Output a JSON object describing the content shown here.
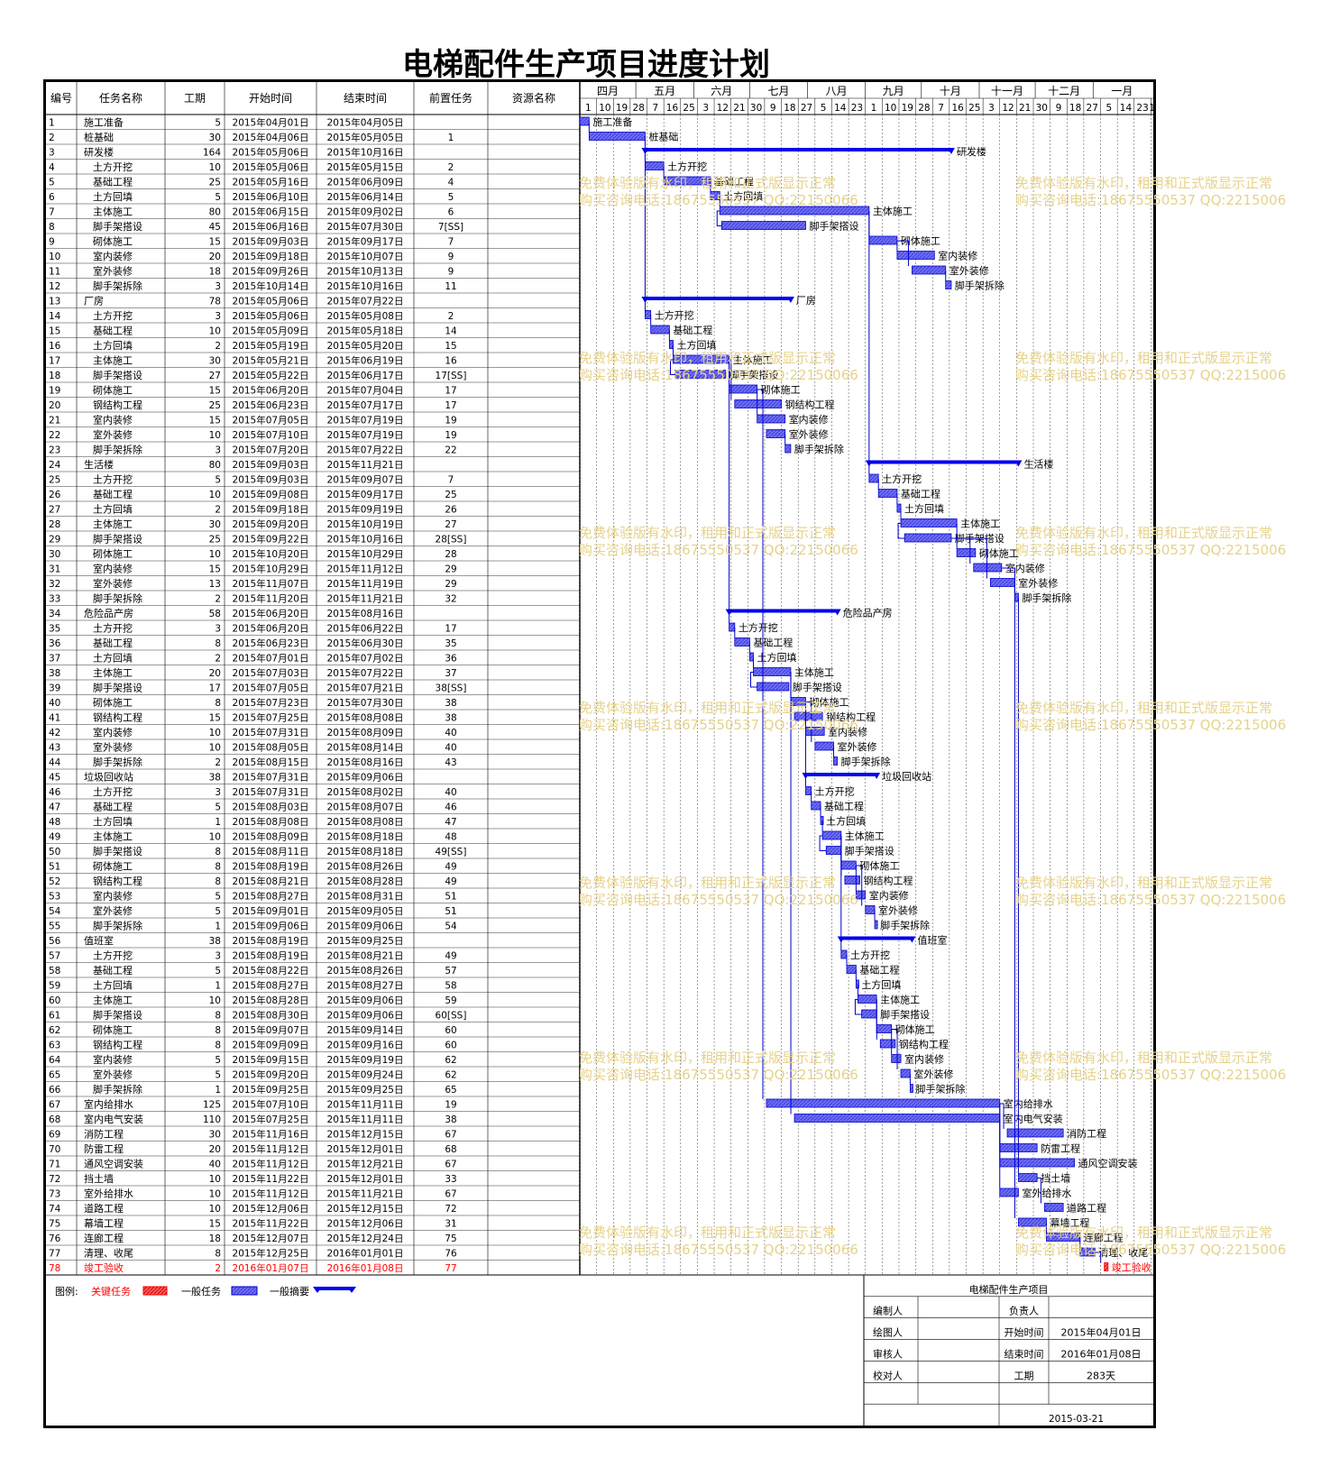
{
  "title": "电梯配件生产项目进度计划",
  "chart_data": {
    "type": "gantt",
    "columns": [
      "编号",
      "任务名称",
      "工期",
      "开始时间",
      "结束时间",
      "前置任务",
      "资源名称"
    ],
    "months": [
      "四月",
      "五月",
      "六月",
      "七月",
      "八月",
      "九月",
      "十月",
      "十一月",
      "十二月",
      "一月"
    ],
    "week_ticks": [
      "1",
      "10",
      "19",
      "28",
      "7",
      "16",
      "25",
      "3",
      "12",
      "21",
      "30",
      "9",
      "18",
      "27",
      "5",
      "14",
      "23",
      "1",
      "10",
      "19",
      "28",
      "7",
      "16",
      "25",
      "3",
      "12",
      "21",
      "30",
      "9",
      "18",
      "27",
      "5",
      "14",
      "23",
      "1"
    ],
    "tasks": [
      {
        "id": "1",
        "name": "施工准备",
        "level": 0,
        "dur": "5",
        "start": "2015年04月01日",
        "end": "2015年04月05日",
        "pred": ""
      },
      {
        "id": "2",
        "name": "桩基础",
        "level": 0,
        "dur": "30",
        "start": "2015年04月06日",
        "end": "2015年05月05日",
        "pred": "1"
      },
      {
        "id": "3",
        "name": "研发楼",
        "level": 0,
        "dur": "164",
        "start": "2015年05月06日",
        "end": "2015年10月16日",
        "pred": "",
        "summary": true
      },
      {
        "id": "4",
        "name": "土方开挖",
        "level": 1,
        "dur": "10",
        "start": "2015年05月06日",
        "end": "2015年05月15日",
        "pred": "2"
      },
      {
        "id": "5",
        "name": "基础工程",
        "level": 1,
        "dur": "25",
        "start": "2015年05月16日",
        "end": "2015年06月09日",
        "pred": "4"
      },
      {
        "id": "6",
        "name": "土方回填",
        "level": 1,
        "dur": "5",
        "start": "2015年06月10日",
        "end": "2015年06月14日",
        "pred": "5"
      },
      {
        "id": "7",
        "name": "主体施工",
        "level": 1,
        "dur": "80",
        "start": "2015年06月15日",
        "end": "2015年09月02日",
        "pred": "6"
      },
      {
        "id": "8",
        "name": "脚手架搭设",
        "level": 1,
        "dur": "45",
        "start": "2015年06月16日",
        "end": "2015年07月30日",
        "pred": "7[SS]"
      },
      {
        "id": "9",
        "name": "砌体施工",
        "level": 1,
        "dur": "15",
        "start": "2015年09月03日",
        "end": "2015年09月17日",
        "pred": "7"
      },
      {
        "id": "10",
        "name": "室内装修",
        "level": 1,
        "dur": "20",
        "start": "2015年09月18日",
        "end": "2015年10月07日",
        "pred": "9"
      },
      {
        "id": "11",
        "name": "室外装修",
        "level": 1,
        "dur": "18",
        "start": "2015年09月26日",
        "end": "2015年10月13日",
        "pred": "9"
      },
      {
        "id": "12",
        "name": "脚手架拆除",
        "level": 1,
        "dur": "3",
        "start": "2015年10月14日",
        "end": "2015年10月16日",
        "pred": "11"
      },
      {
        "id": "13",
        "name": "厂房",
        "level": 0,
        "dur": "78",
        "start": "2015年05月06日",
        "end": "2015年07月22日",
        "pred": "",
        "summary": true
      },
      {
        "id": "14",
        "name": "土方开挖",
        "level": 1,
        "dur": "3",
        "start": "2015年05月06日",
        "end": "2015年05月08日",
        "pred": "2"
      },
      {
        "id": "15",
        "name": "基础工程",
        "level": 1,
        "dur": "10",
        "start": "2015年05月09日",
        "end": "2015年05月18日",
        "pred": "14"
      },
      {
        "id": "16",
        "name": "土方回填",
        "level": 1,
        "dur": "2",
        "start": "2015年05月19日",
        "end": "2015年05月20日",
        "pred": "15"
      },
      {
        "id": "17",
        "name": "主体施工",
        "level": 1,
        "dur": "30",
        "start": "2015年05月21日",
        "end": "2015年06月19日",
        "pred": "16"
      },
      {
        "id": "18",
        "name": "脚手架搭设",
        "level": 1,
        "dur": "27",
        "start": "2015年05月22日",
        "end": "2015年06月17日",
        "pred": "17[SS]"
      },
      {
        "id": "19",
        "name": "砌体施工",
        "level": 1,
        "dur": "15",
        "start": "2015年06月20日",
        "end": "2015年07月04日",
        "pred": "17"
      },
      {
        "id": "20",
        "name": "钢结构工程",
        "level": 1,
        "dur": "25",
        "start": "2015年06月23日",
        "end": "2015年07月17日",
        "pred": "17"
      },
      {
        "id": "21",
        "name": "室内装修",
        "level": 1,
        "dur": "15",
        "start": "2015年07月05日",
        "end": "2015年07月19日",
        "pred": "19"
      },
      {
        "id": "22",
        "name": "室外装修",
        "level": 1,
        "dur": "10",
        "start": "2015年07月10日",
        "end": "2015年07月19日",
        "pred": "19"
      },
      {
        "id": "23",
        "name": "脚手架拆除",
        "level": 1,
        "dur": "3",
        "start": "2015年07月20日",
        "end": "2015年07月22日",
        "pred": "22"
      },
      {
        "id": "24",
        "name": "生活楼",
        "level": 0,
        "dur": "80",
        "start": "2015年09月03日",
        "end": "2015年11月21日",
        "pred": "",
        "summary": true
      },
      {
        "id": "25",
        "name": "土方开挖",
        "level": 1,
        "dur": "5",
        "start": "2015年09月03日",
        "end": "2015年09月07日",
        "pred": "7"
      },
      {
        "id": "26",
        "name": "基础工程",
        "level": 1,
        "dur": "10",
        "start": "2015年09月08日",
        "end": "2015年09月17日",
        "pred": "25"
      },
      {
        "id": "27",
        "name": "土方回填",
        "level": 1,
        "dur": "2",
        "start": "2015年09月18日",
        "end": "2015年09月19日",
        "pred": "26"
      },
      {
        "id": "28",
        "name": "主体施工",
        "level": 1,
        "dur": "30",
        "start": "2015年09月20日",
        "end": "2015年10月19日",
        "pred": "27"
      },
      {
        "id": "29",
        "name": "脚手架搭设",
        "level": 1,
        "dur": "25",
        "start": "2015年09月22日",
        "end": "2015年10月16日",
        "pred": "28[SS]"
      },
      {
        "id": "30",
        "name": "砌体施工",
        "level": 1,
        "dur": "10",
        "start": "2015年10月20日",
        "end": "2015年10月29日",
        "pred": "28"
      },
      {
        "id": "31",
        "name": "室内装修",
        "level": 1,
        "dur": "15",
        "start": "2015年10月29日",
        "end": "2015年11月12日",
        "pred": "29"
      },
      {
        "id": "32",
        "name": "室外装修",
        "level": 1,
        "dur": "13",
        "start": "2015年11月07日",
        "end": "2015年11月19日",
        "pred": "29"
      },
      {
        "id": "33",
        "name": "脚手架拆除",
        "level": 1,
        "dur": "2",
        "start": "2015年11月20日",
        "end": "2015年11月21日",
        "pred": "32"
      },
      {
        "id": "34",
        "name": "危险品产房",
        "level": 0,
        "dur": "58",
        "start": "2015年06月20日",
        "end": "2015年08月16日",
        "pred": "",
        "summary": true
      },
      {
        "id": "35",
        "name": "土方开挖",
        "level": 1,
        "dur": "3",
        "start": "2015年06月20日",
        "end": "2015年06月22日",
        "pred": "17"
      },
      {
        "id": "36",
        "name": "基础工程",
        "level": 1,
        "dur": "8",
        "start": "2015年06月23日",
        "end": "2015年06月30日",
        "pred": "35"
      },
      {
        "id": "37",
        "name": "土方回填",
        "level": 1,
        "dur": "2",
        "start": "2015年07月01日",
        "end": "2015年07月02日",
        "pred": "36"
      },
      {
        "id": "38",
        "name": "主体施工",
        "level": 1,
        "dur": "20",
        "start": "2015年07月03日",
        "end": "2015年07月22日",
        "pred": "37"
      },
      {
        "id": "39",
        "name": "脚手架搭设",
        "level": 1,
        "dur": "17",
        "start": "2015年07月05日",
        "end": "2015年07月21日",
        "pred": "38[SS]"
      },
      {
        "id": "40",
        "name": "砌体施工",
        "level": 1,
        "dur": "8",
        "start": "2015年07月23日",
        "end": "2015年07月30日",
        "pred": "38"
      },
      {
        "id": "41",
        "name": "钢结构工程",
        "level": 1,
        "dur": "15",
        "start": "2015年07月25日",
        "end": "2015年08月08日",
        "pred": "38"
      },
      {
        "id": "42",
        "name": "室内装修",
        "level": 1,
        "dur": "10",
        "start": "2015年07月31日",
        "end": "2015年08月09日",
        "pred": "40"
      },
      {
        "id": "43",
        "name": "室外装修",
        "level": 1,
        "dur": "10",
        "start": "2015年08月05日",
        "end": "2015年08月14日",
        "pred": "40"
      },
      {
        "id": "44",
        "name": "脚手架拆除",
        "level": 1,
        "dur": "2",
        "start": "2015年08月15日",
        "end": "2015年08月16日",
        "pred": "43"
      },
      {
        "id": "45",
        "name": "垃圾回收站",
        "level": 0,
        "dur": "38",
        "start": "2015年07月31日",
        "end": "2015年09月06日",
        "pred": "",
        "summary": true
      },
      {
        "id": "46",
        "name": "土方开挖",
        "level": 1,
        "dur": "3",
        "start": "2015年07月31日",
        "end": "2015年08月02日",
        "pred": "40"
      },
      {
        "id": "47",
        "name": "基础工程",
        "level": 1,
        "dur": "5",
        "start": "2015年08月03日",
        "end": "2015年08月07日",
        "pred": "46"
      },
      {
        "id": "48",
        "name": "土方回填",
        "level": 1,
        "dur": "1",
        "start": "2015年08月08日",
        "end": "2015年08月08日",
        "pred": "47"
      },
      {
        "id": "49",
        "name": "主体施工",
        "level": 1,
        "dur": "10",
        "start": "2015年08月09日",
        "end": "2015年08月18日",
        "pred": "48"
      },
      {
        "id": "50",
        "name": "脚手架搭设",
        "level": 1,
        "dur": "8",
        "start": "2015年08月11日",
        "end": "2015年08月18日",
        "pred": "49[SS]"
      },
      {
        "id": "51",
        "name": "砌体施工",
        "level": 1,
        "dur": "8",
        "start": "2015年08月19日",
        "end": "2015年08月26日",
        "pred": "49"
      },
      {
        "id": "52",
        "name": "钢结构工程",
        "level": 1,
        "dur": "8",
        "start": "2015年08月21日",
        "end": "2015年08月28日",
        "pred": "49"
      },
      {
        "id": "53",
        "name": "室内装修",
        "level": 1,
        "dur": "5",
        "start": "2015年08月27日",
        "end": "2015年08月31日",
        "pred": "51"
      },
      {
        "id": "54",
        "name": "室外装修",
        "level": 1,
        "dur": "5",
        "start": "2015年09月01日",
        "end": "2015年09月05日",
        "pred": "51"
      },
      {
        "id": "55",
        "name": "脚手架拆除",
        "level": 1,
        "dur": "1",
        "start": "2015年09月06日",
        "end": "2015年09月06日",
        "pred": "54"
      },
      {
        "id": "56",
        "name": "值班室",
        "level": 0,
        "dur": "38",
        "start": "2015年08月19日",
        "end": "2015年09月25日",
        "pred": "",
        "summary": true
      },
      {
        "id": "57",
        "name": "土方开挖",
        "level": 1,
        "dur": "3",
        "start": "2015年08月19日",
        "end": "2015年08月21日",
        "pred": "49"
      },
      {
        "id": "58",
        "name": "基础工程",
        "level": 1,
        "dur": "5",
        "start": "2015年08月22日",
        "end": "2015年08月26日",
        "pred": "57"
      },
      {
        "id": "59",
        "name": "土方回填",
        "level": 1,
        "dur": "1",
        "start": "2015年08月27日",
        "end": "2015年08月27日",
        "pred": "58"
      },
      {
        "id": "60",
        "name": "主体施工",
        "level": 1,
        "dur": "10",
        "start": "2015年08月28日",
        "end": "2015年09月06日",
        "pred": "59"
      },
      {
        "id": "61",
        "name": "脚手架搭设",
        "level": 1,
        "dur": "8",
        "start": "2015年08月30日",
        "end": "2015年09月06日",
        "pred": "60[SS]"
      },
      {
        "id": "62",
        "name": "砌体施工",
        "level": 1,
        "dur": "8",
        "start": "2015年09月07日",
        "end": "2015年09月14日",
        "pred": "60"
      },
      {
        "id": "63",
        "name": "钢结构工程",
        "level": 1,
        "dur": "8",
        "start": "2015年09月09日",
        "end": "2015年09月16日",
        "pred": "60"
      },
      {
        "id": "64",
        "name": "室内装修",
        "level": 1,
        "dur": "5",
        "start": "2015年09月15日",
        "end": "2015年09月19日",
        "pred": "62"
      },
      {
        "id": "65",
        "name": "室外装修",
        "level": 1,
        "dur": "5",
        "start": "2015年09月20日",
        "end": "2015年09月24日",
        "pred": "62"
      },
      {
        "id": "66",
        "name": "脚手架拆除",
        "level": 1,
        "dur": "1",
        "start": "2015年09月25日",
        "end": "2015年09月25日",
        "pred": "65"
      },
      {
        "id": "67",
        "name": "室内给排水",
        "level": 0,
        "dur": "125",
        "start": "2015年07月10日",
        "end": "2015年11月11日",
        "pred": "19"
      },
      {
        "id": "68",
        "name": "室内电气安装",
        "level": 0,
        "dur": "110",
        "start": "2015年07月25日",
        "end": "2015年11月11日",
        "pred": "38"
      },
      {
        "id": "69",
        "name": "消防工程",
        "level": 0,
        "dur": "30",
        "start": "2015年11月16日",
        "end": "2015年12月15日",
        "pred": "67"
      },
      {
        "id": "70",
        "name": "防雷工程",
        "level": 0,
        "dur": "20",
        "start": "2015年11月12日",
        "end": "2015年12月01日",
        "pred": "68"
      },
      {
        "id": "71",
        "name": "通风空调安装",
        "level": 0,
        "dur": "40",
        "start": "2015年11月12日",
        "end": "2015年12月21日",
        "pred": "67"
      },
      {
        "id": "72",
        "name": "挡土墙",
        "level": 0,
        "dur": "10",
        "start": "2015年11月22日",
        "end": "2015年12月01日",
        "pred": "33"
      },
      {
        "id": "73",
        "name": "室外给排水",
        "level": 0,
        "dur": "10",
        "start": "2015年11月12日",
        "end": "2015年11月21日",
        "pred": "67"
      },
      {
        "id": "74",
        "name": "道路工程",
        "level": 0,
        "dur": "10",
        "start": "2015年12月06日",
        "end": "2015年12月15日",
        "pred": "72"
      },
      {
        "id": "75",
        "name": "幕墙工程",
        "level": 0,
        "dur": "15",
        "start": "2015年11月22日",
        "end": "2015年12月06日",
        "pred": "31"
      },
      {
        "id": "76",
        "name": "连廊工程",
        "level": 0,
        "dur": "18",
        "start": "2015年12月07日",
        "end": "2015年12月24日",
        "pred": "75"
      },
      {
        "id": "77",
        "name": "清理、收尾",
        "level": 0,
        "dur": "8",
        "start": "2015年12月25日",
        "end": "2016年01月01日",
        "pred": "76"
      },
      {
        "id": "78",
        "name": "竣工验收",
        "level": 0,
        "dur": "2",
        "start": "2016年01月07日",
        "end": "2016年01月08日",
        "pred": "77",
        "critical": true
      }
    ]
  },
  "legend": {
    "label": "图例:",
    "critical": "关键任务",
    "normal": "一般任务",
    "summary": "一般摘要"
  },
  "info_table": {
    "title": "电梯配件生产项目",
    "labels": [
      "编制人",
      "绘图人",
      "审核人",
      "校对人"
    ],
    "owner_label": "负责人",
    "start_label": "开始时间",
    "start_value": "2015年04月01日",
    "end_label": "结束时间",
    "end_value": "2016年01月08日",
    "dur_label": "工期",
    "dur_value": "283天",
    "date": "2015-03-21"
  },
  "watermark": {
    "line1": "免费体验版有水印，租用和正式版显示正常",
    "line2": "购买咨询电话:18675550537 QQ:22150066"
  },
  "colors": {
    "bar": "#6f6ff2",
    "bar_edge": "#0000cc",
    "summary": "#0000ee",
    "critical": "#ff0000",
    "watermark": "#e6d28a"
  }
}
